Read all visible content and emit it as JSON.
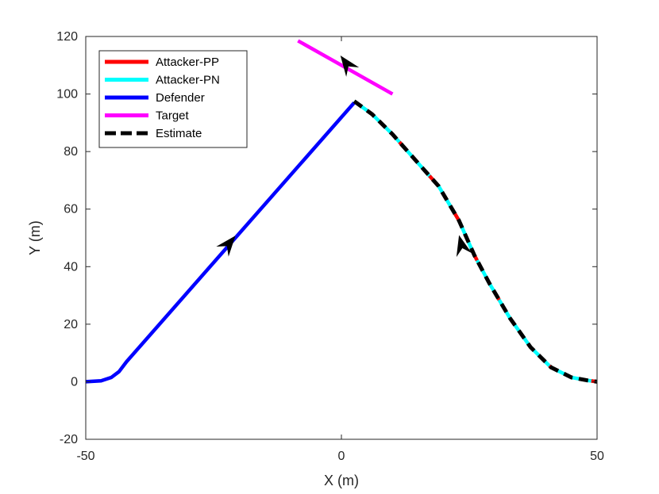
{
  "chart_data": {
    "type": "line",
    "title": "",
    "xlabel": "X (m)",
    "ylabel": "Y (m)",
    "xlim": [
      -50,
      50
    ],
    "ylim": [
      -20,
      120
    ],
    "xticks": [
      -50,
      0,
      50
    ],
    "xtick_labels": [
      "-50",
      "0",
      "50"
    ],
    "yticks": [
      -20,
      0,
      20,
      40,
      60,
      80,
      100,
      120
    ],
    "ytick_labels": [
      "-20",
      "0",
      "20",
      "40",
      "60",
      "80",
      "100",
      "120"
    ],
    "grid": false,
    "legend": {
      "position": "top-left",
      "entries": [
        "Attacker-PP",
        "Attacker-PN",
        "Defender",
        "Target",
        "Estimate"
      ]
    },
    "series": [
      {
        "name": "Defender",
        "color": "#0000ff",
        "style": "solid",
        "points": [
          [
            -50,
            0
          ],
          [
            -47,
            0.3
          ],
          [
            -45,
            1.5
          ],
          [
            -43.5,
            3.5
          ],
          [
            -42,
            7
          ],
          [
            2.5,
            97
          ]
        ]
      },
      {
        "name": "Target",
        "color": "#ff00ff",
        "style": "solid",
        "points": [
          [
            -8.5,
            118.5
          ],
          [
            10,
            100
          ]
        ]
      },
      {
        "name": "Attacker-PN",
        "color": "#00ffff",
        "style": "solid",
        "points": [
          [
            2.5,
            97.5
          ],
          [
            6,
            93
          ],
          [
            10,
            86
          ],
          [
            15,
            76
          ],
          [
            19,
            68
          ],
          [
            23,
            56
          ],
          [
            26,
            44
          ],
          [
            29,
            34
          ],
          [
            33,
            22
          ],
          [
            37,
            12
          ],
          [
            41,
            5
          ],
          [
            45,
            1.5
          ],
          [
            48,
            0.5
          ],
          [
            50,
            0
          ]
        ]
      },
      {
        "name": "Attacker-PP",
        "color": "#ff0000",
        "style": "dashes",
        "points": [
          [
            2.5,
            97.5
          ],
          [
            6,
            93
          ],
          [
            10,
            86
          ],
          [
            15,
            76
          ],
          [
            19,
            68
          ],
          [
            23,
            56
          ],
          [
            26,
            44
          ],
          [
            29,
            34
          ],
          [
            33,
            22
          ],
          [
            37,
            12
          ],
          [
            41,
            5
          ],
          [
            45,
            1.5
          ],
          [
            48,
            0.5
          ],
          [
            50,
            0
          ]
        ]
      },
      {
        "name": "Estimate",
        "color": "#000000",
        "style": "dashed",
        "points": [
          [
            2.5,
            97.5
          ],
          [
            6,
            93
          ],
          [
            10,
            86
          ],
          [
            15,
            76
          ],
          [
            19,
            68
          ],
          [
            23,
            56
          ],
          [
            26,
            44
          ],
          [
            29,
            34
          ],
          [
            33,
            22
          ],
          [
            37,
            12
          ],
          [
            41,
            5
          ],
          [
            45,
            1.5
          ],
          [
            48,
            0.5
          ],
          [
            50,
            0
          ]
        ]
      }
    ],
    "annotations": [
      {
        "name": "defender-direction-arrow",
        "at": [
          -22,
          48
        ],
        "direction": "up-right"
      },
      {
        "name": "target-direction-arrow",
        "at": [
          1,
          110.5
        ],
        "direction": "up-left"
      },
      {
        "name": "attacker-direction-arrow",
        "at": [
          23.5,
          47.5
        ],
        "direction": "up"
      }
    ]
  }
}
